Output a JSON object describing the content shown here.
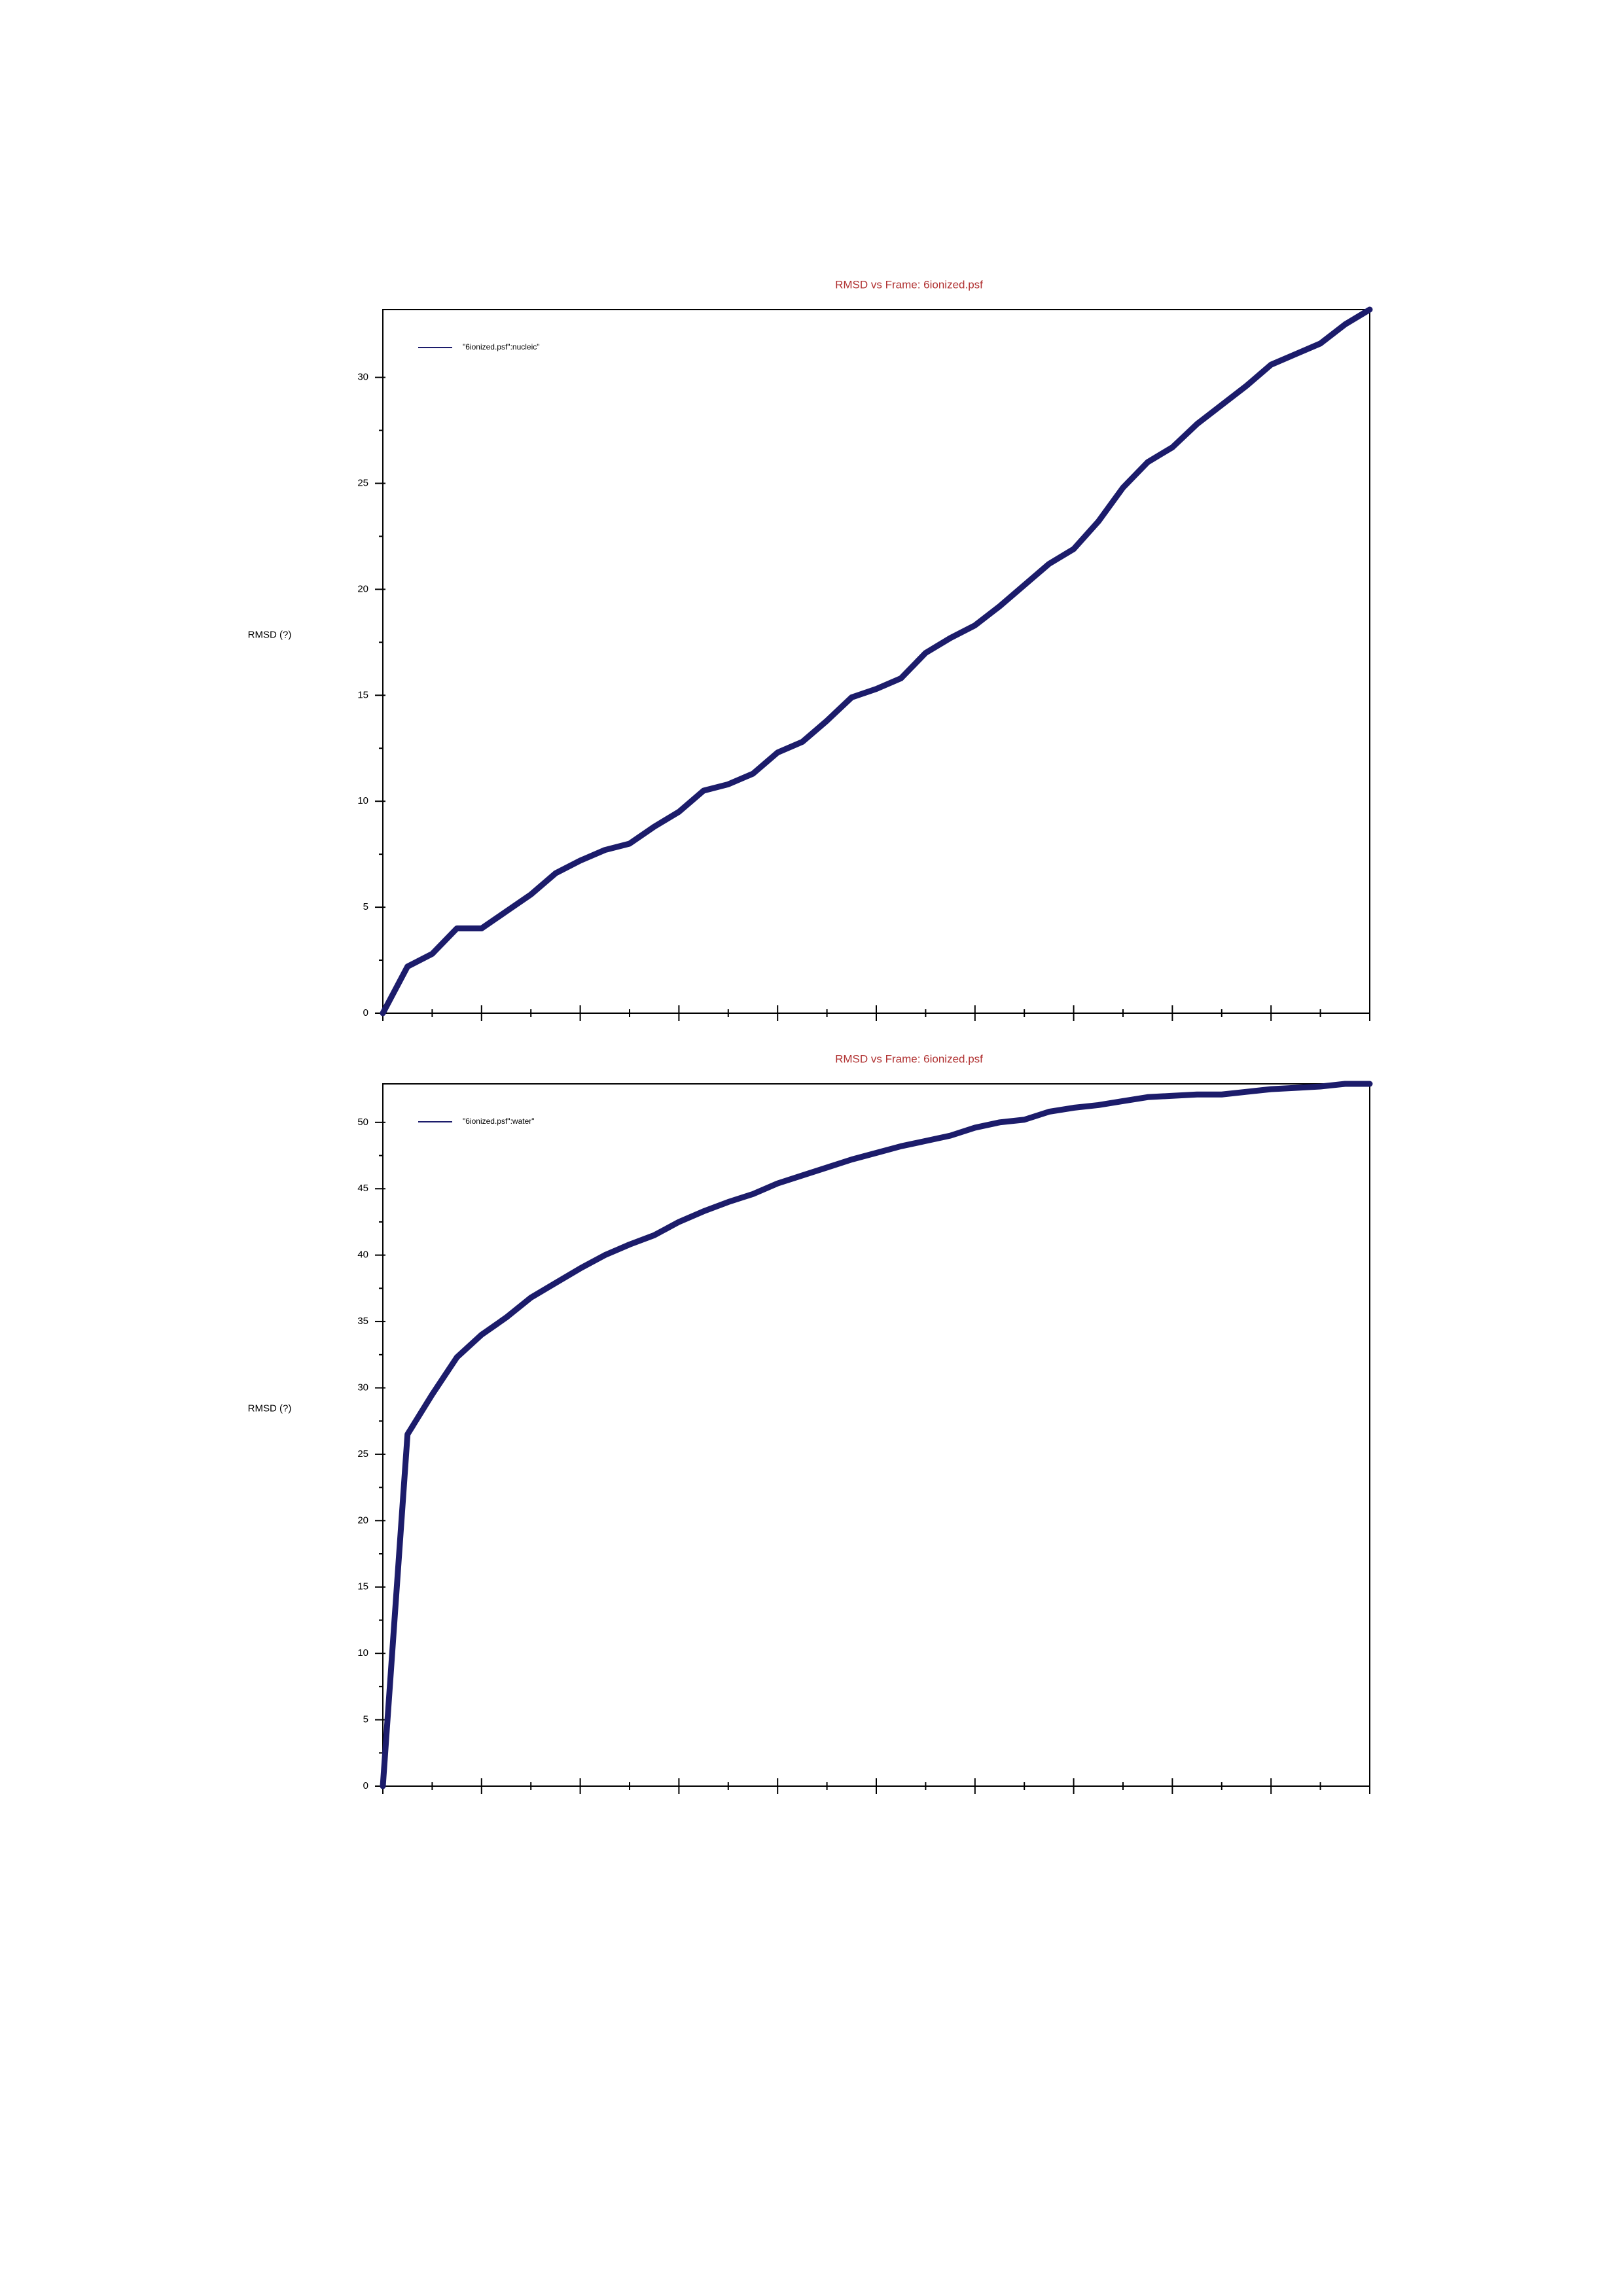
{
  "chart_data": [
    {
      "type": "line",
      "title": "RMSD vs Frame: 6ionized.psf",
      "y_label": "RMSD (?)",
      "series": [
        {
          "name": "\"6ionized.psf\":nucleic\"",
          "color": "#1c1c6b",
          "values": [
            0,
            2.2,
            2.8,
            4.0,
            4.0,
            4.8,
            5.6,
            6.6,
            7.2,
            7.7,
            8.0,
            8.8,
            9.5,
            10.5,
            10.8,
            11.3,
            12.3,
            12.8,
            13.8,
            14.9,
            15.3,
            15.8,
            17.0,
            17.7,
            18.3,
            19.2,
            20.2,
            21.2,
            21.9,
            23.2,
            24.8,
            26.0,
            26.7,
            27.8,
            28.7,
            29.6,
            30.6,
            31.1,
            31.6,
            32.5,
            33.2
          ]
        }
      ],
      "ylim": [
        0,
        33.2
      ],
      "yticks": [
        0,
        5,
        10,
        15,
        20,
        25,
        30
      ]
    },
    {
      "type": "line",
      "title": "RMSD vs Frame: 6ionized.psf",
      "y_label": "RMSD (?)",
      "series": [
        {
          "name": "\"6ionized.psf\":water\"",
          "color": "#1c1c6b",
          "values": [
            0,
            26.5,
            29.5,
            32.3,
            34.0,
            35.3,
            36.8,
            37.9,
            39.0,
            40.0,
            40.8,
            41.5,
            42.5,
            43.3,
            44.0,
            44.6,
            45.4,
            46.0,
            46.6,
            47.2,
            47.7,
            48.2,
            48.6,
            49.0,
            49.6,
            50.0,
            50.2,
            50.8,
            51.1,
            51.3,
            51.6,
            51.9,
            52.0,
            52.1,
            52.1,
            52.3,
            52.5,
            52.6,
            52.7,
            52.9,
            52.9
          ]
        }
      ],
      "ylim": [
        0,
        52.9
      ],
      "yticks": [
        0,
        5,
        10,
        15,
        20,
        25,
        30,
        35,
        40,
        45,
        50
      ]
    }
  ]
}
